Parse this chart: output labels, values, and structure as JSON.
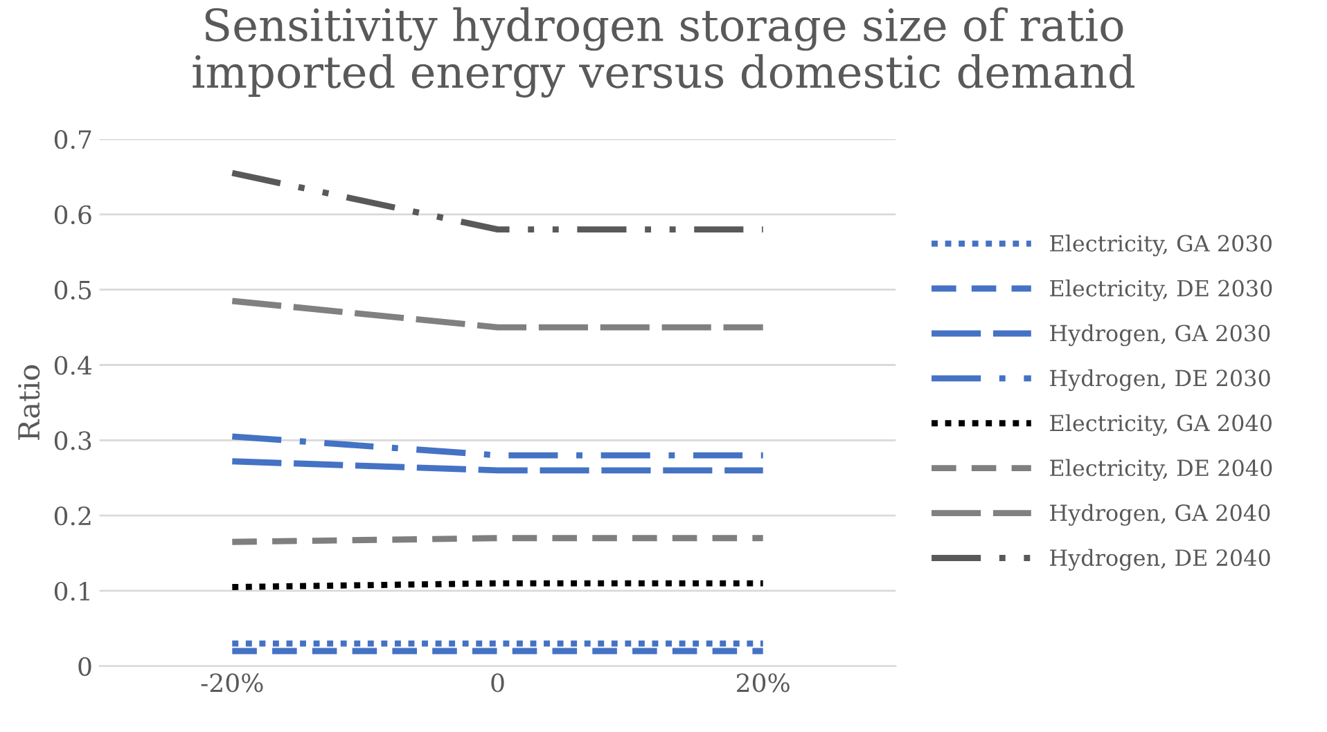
{
  "chart_data": {
    "type": "line",
    "title": "Sensitivity hydrogen storage size of ratio\nimported energy versus domestic demand",
    "ylabel": "Ratio",
    "categories": [
      "-20%",
      "0",
      "20%"
    ],
    "ylim": [
      0,
      0.7
    ],
    "yticks": [
      {
        "value": 0,
        "label": "0"
      },
      0.1,
      0.2,
      0.3,
      0.4,
      0.5,
      0.6,
      0.7
    ],
    "grid": "y",
    "legend": "right",
    "marker": "none",
    "series": [
      {
        "name": "Electricity, GA 2030",
        "color": "#4472c4",
        "line_style": "dotted",
        "values": [
          0.03,
          0.03,
          0.03
        ]
      },
      {
        "name": "Electricity, DE 2030",
        "color": "#4472c4",
        "line_style": "dashed",
        "values": [
          0.02,
          0.02,
          0.02
        ]
      },
      {
        "name": "Hydrogen, GA 2030",
        "color": "#4472c4",
        "line_style": "longdash",
        "values": [
          0.272,
          0.26,
          0.26
        ]
      },
      {
        "name": "Hydrogen, DE 2030",
        "color": "#4472c4",
        "line_style": "longdashdot",
        "values": [
          0.305,
          0.28,
          0.28
        ]
      },
      {
        "name": "Electricity, GA 2040",
        "color": "#000000",
        "line_style": "dotted",
        "values": [
          0.105,
          0.11,
          0.11
        ]
      },
      {
        "name": "Electricity, DE 2040",
        "color": "#7f7f7f",
        "line_style": "dashed",
        "values": [
          0.165,
          0.17,
          0.17
        ]
      },
      {
        "name": "Hydrogen, GA 2040",
        "color": "#808080",
        "line_style": "longdash",
        "values": [
          0.485,
          0.45,
          0.45
        ]
      },
      {
        "name": "Hydrogen, DE 2040",
        "color": "#595959",
        "line_style": "longdashdotdot",
        "values": [
          0.655,
          0.58,
          0.58
        ]
      }
    ]
  }
}
